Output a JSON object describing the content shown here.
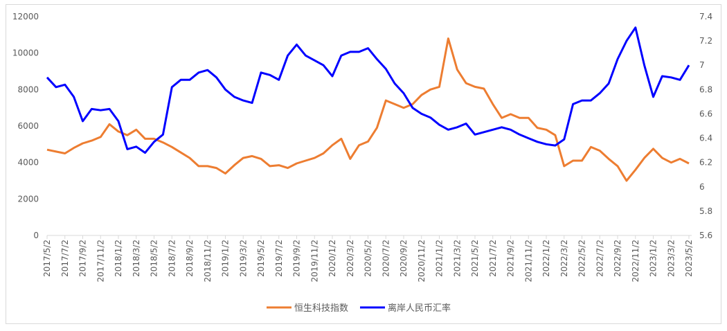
{
  "chart_data": {
    "type": "line",
    "title": "",
    "xlabel": "",
    "ylabel": "",
    "legend_position": "bottom",
    "grid": false,
    "x_tick_labels": [
      "2017/5/2",
      "2017/7/2",
      "2017/9/2",
      "2017/11/2",
      "2018/1/2",
      "2018/3/2",
      "2018/5/2",
      "2018/7/2",
      "2018/9/2",
      "2018/11/2",
      "2019/1/2",
      "2019/3/2",
      "2019/5/2",
      "2019/7/2",
      "2019/9/2",
      "2019/11/2",
      "2020/1/2",
      "2020/3/2",
      "2020/5/2",
      "2020/7/2",
      "2020/9/2",
      "2020/11/2",
      "2021/1/2",
      "2021/3/2",
      "2021/5/2",
      "2021/7/2",
      "2021/9/2",
      "2021/11/2",
      "2022/1/2",
      "2022/3/2",
      "2022/5/2",
      "2022/7/2",
      "2022/9/2",
      "2022/11/2",
      "2023/1/2",
      "2023/3/2",
      "2023/5/2"
    ],
    "y_left": {
      "range": [
        0,
        12000
      ],
      "ticks": [
        "0",
        "2000",
        "4000",
        "6000",
        "8000",
        "10000",
        "12000"
      ]
    },
    "y_right": {
      "range": [
        5.6,
        7.4
      ],
      "ticks": [
        "5.6",
        "5.8",
        "6",
        "6.2",
        "6.4",
        "6.6",
        "6.8",
        "7",
        "7.2",
        "7.4"
      ]
    },
    "x_start": "2017/5",
    "x_step": "1 month",
    "series": [
      {
        "name": "恒生科技指数",
        "axis": "left",
        "color": "#ED7D31",
        "values": [
          4700,
          4600,
          4500,
          4800,
          5050,
          5200,
          5400,
          6100,
          5700,
          5500,
          5800,
          5300,
          5300,
          5100,
          4850,
          4550,
          4250,
          3800,
          3800,
          3700,
          3400,
          3850,
          4250,
          4350,
          4200,
          3800,
          3850,
          3700,
          3950,
          4100,
          4250,
          4500,
          4950,
          5300,
          4200,
          4950,
          5150,
          5900,
          7400,
          7200,
          7000,
          7200,
          7700,
          8000,
          8150,
          10800,
          9100,
          8350,
          8150,
          8050,
          7200,
          6450,
          6650,
          6450,
          6450,
          5900,
          5800,
          5500,
          3800,
          4100,
          4100,
          4850,
          4650,
          4200,
          3800,
          3000,
          3600,
          4250,
          4750,
          4250,
          4000,
          4200,
          3950
        ]
      },
      {
        "name": "离岸人民币汇率",
        "axis": "right",
        "color": "#0000FF",
        "values": [
          6.9,
          6.82,
          6.84,
          6.74,
          6.54,
          6.64,
          6.63,
          6.64,
          6.54,
          6.31,
          6.33,
          6.28,
          6.37,
          6.43,
          6.82,
          6.88,
          6.88,
          6.94,
          6.96,
          6.9,
          6.8,
          6.74,
          6.71,
          6.69,
          6.94,
          6.92,
          6.88,
          7.08,
          7.17,
          7.08,
          7.04,
          7.0,
          6.91,
          7.08,
          7.11,
          7.11,
          7.14,
          7.05,
          6.97,
          6.85,
          6.77,
          6.65,
          6.6,
          6.57,
          6.51,
          6.47,
          6.49,
          6.52,
          6.43,
          6.45,
          6.47,
          6.49,
          6.47,
          6.43,
          6.4,
          6.37,
          6.35,
          6.34,
          6.39,
          6.68,
          6.71,
          6.71,
          6.77,
          6.85,
          7.05,
          7.2,
          7.31,
          7.0,
          6.74,
          6.91,
          6.9,
          6.88,
          7.0
        ]
      }
    ]
  }
}
